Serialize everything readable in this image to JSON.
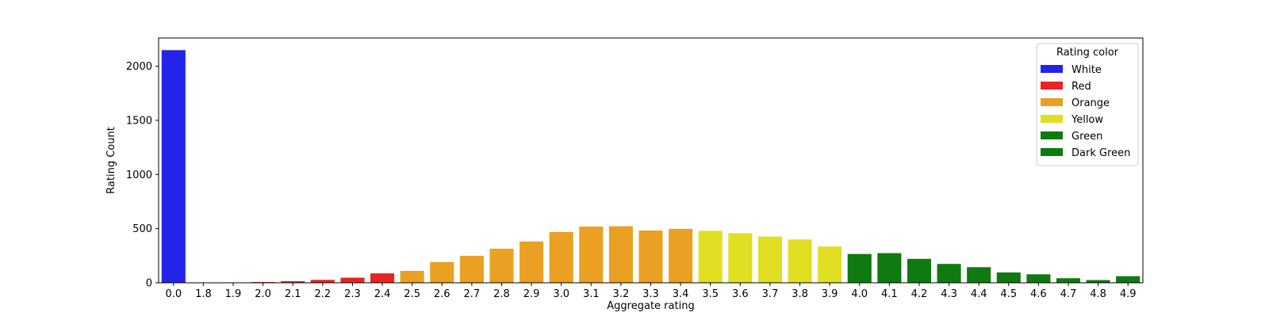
{
  "chart_data": {
    "type": "bar",
    "xlabel": "Aggregate rating",
    "ylabel": "Rating Count",
    "ylim": [
      0,
      2260
    ],
    "yticks": [
      0,
      500,
      1000,
      1500,
      2000
    ],
    "categories": [
      "0.0",
      "1.8",
      "1.9",
      "2.0",
      "2.1",
      "2.2",
      "2.3",
      "2.4",
      "2.5",
      "2.6",
      "2.7",
      "2.8",
      "2.9",
      "3.0",
      "3.1",
      "3.2",
      "3.3",
      "3.4",
      "3.5",
      "3.6",
      "3.7",
      "3.8",
      "3.9",
      "4.0",
      "4.1",
      "4.2",
      "4.3",
      "4.4",
      "4.5",
      "4.6",
      "4.7",
      "4.8",
      "4.9"
    ],
    "values": [
      2148,
      1,
      2,
      7,
      15,
      27,
      47,
      87,
      110,
      191,
      249,
      315,
      381,
      468,
      519,
      522,
      483,
      498,
      480,
      458,
      427,
      400,
      335,
      266,
      274,
      221,
      174,
      144,
      95,
      78,
      42,
      25,
      61
    ],
    "bar_color_groups": [
      "White",
      "Red",
      "Red",
      "Red",
      "Red",
      "Red",
      "Red",
      "Red",
      "Orange",
      "Orange",
      "Orange",
      "Orange",
      "Orange",
      "Orange",
      "Orange",
      "Orange",
      "Orange",
      "Orange",
      "Yellow",
      "Yellow",
      "Yellow",
      "Yellow",
      "Yellow",
      "Green",
      "Green",
      "Green",
      "Green",
      "Green",
      "Green",
      "Green",
      "Green",
      "Green",
      "Green"
    ],
    "legend": {
      "title": "Rating color",
      "placement": "top-right",
      "entries": [
        {
          "label": "White",
          "color": "#2323ea"
        },
        {
          "label": "Red",
          "color": "#ea2323"
        },
        {
          "label": "Orange",
          "color": "#eaa023"
        },
        {
          "label": "Yellow",
          "color": "#e0df23"
        },
        {
          "label": "Green",
          "color": "#0f7a0f"
        },
        {
          "label": "Dark Green",
          "color": "#0f7a0f"
        }
      ]
    },
    "grid": false
  }
}
